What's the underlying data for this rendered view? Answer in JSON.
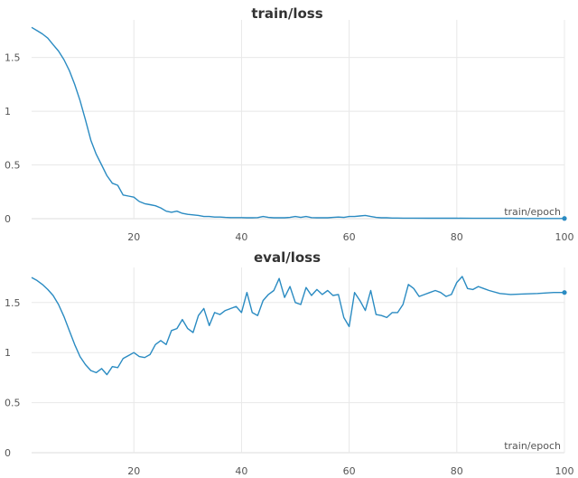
{
  "colors": {
    "series": "#2a8bc2"
  },
  "chart_data": [
    {
      "type": "line",
      "title": "train/loss",
      "xlabel": "train/epoch",
      "ylabel": "",
      "xlim": [
        1,
        100
      ],
      "ylim": [
        0,
        1.85
      ],
      "xticks": [
        20,
        40,
        60,
        80,
        100
      ],
      "xtick_labels": [
        "20",
        "40",
        "60",
        "80",
        "100"
      ],
      "yticks": [
        0,
        0.5,
        1,
        1.5
      ],
      "ytick_labels": [
        "0",
        "0.5",
        "1",
        "1.5"
      ],
      "grid": true,
      "series": [
        {
          "x": [
            1,
            2,
            3,
            4,
            5,
            6,
            7,
            8,
            9,
            10,
            11,
            12,
            13,
            14,
            15,
            16,
            17,
            18,
            19,
            20,
            21,
            22,
            23,
            24,
            25,
            26,
            27,
            28,
            29,
            30,
            31,
            32,
            33,
            34,
            35,
            36,
            37,
            38,
            39,
            40,
            41,
            42,
            43,
            44,
            45,
            46,
            47,
            48,
            49,
            50,
            51,
            52,
            53,
            54,
            55,
            56,
            57,
            58,
            59,
            60,
            61,
            62,
            63,
            64,
            65,
            66,
            67,
            68,
            69,
            70,
            72,
            75,
            78,
            80,
            83,
            85,
            88,
            90,
            93,
            95,
            97,
            100
          ],
          "y": [
            1.78,
            1.75,
            1.72,
            1.68,
            1.62,
            1.56,
            1.48,
            1.38,
            1.25,
            1.1,
            0.92,
            0.73,
            0.6,
            0.5,
            0.4,
            0.33,
            0.31,
            0.22,
            0.21,
            0.2,
            0.16,
            0.14,
            0.13,
            0.12,
            0.1,
            0.07,
            0.06,
            0.07,
            0.05,
            0.04,
            0.035,
            0.03,
            0.02,
            0.02,
            0.015,
            0.015,
            0.012,
            0.01,
            0.01,
            0.01,
            0.008,
            0.008,
            0.01,
            0.02,
            0.012,
            0.008,
            0.008,
            0.008,
            0.012,
            0.02,
            0.012,
            0.02,
            0.01,
            0.008,
            0.008,
            0.008,
            0.012,
            0.015,
            0.012,
            0.02,
            0.02,
            0.025,
            0.03,
            0.02,
            0.012,
            0.008,
            0.008,
            0.006,
            0.006,
            0.005,
            0.005,
            0.004,
            0.004,
            0.004,
            0.003,
            0.003,
            0.003,
            0.003,
            0.002,
            0.002,
            0.002,
            0.002
          ]
        }
      ]
    },
    {
      "type": "line",
      "title": "eval/loss",
      "xlabel": "train/epoch",
      "ylabel": "",
      "xlim": [
        1,
        100
      ],
      "ylim": [
        0,
        1.85
      ],
      "xticks": [
        20,
        40,
        60,
        80,
        100
      ],
      "xtick_labels": [
        "20",
        "40",
        "60",
        "80",
        "100"
      ],
      "yticks": [
        0,
        0.5,
        1,
        1.5
      ],
      "ytick_labels": [
        "0",
        "0.5",
        "1",
        "1.5"
      ],
      "grid": true,
      "series": [
        {
          "x": [
            1,
            2,
            3,
            4,
            5,
            6,
            7,
            8,
            9,
            10,
            11,
            12,
            13,
            14,
            15,
            16,
            17,
            18,
            19,
            20,
            21,
            22,
            23,
            24,
            25,
            26,
            27,
            28,
            29,
            30,
            31,
            32,
            33,
            34,
            35,
            36,
            37,
            38,
            39,
            40,
            41,
            42,
            43,
            44,
            45,
            46,
            47,
            48,
            49,
            50,
            51,
            52,
            53,
            54,
            55,
            56,
            57,
            58,
            59,
            60,
            61,
            62,
            63,
            64,
            65,
            66,
            67,
            68,
            69,
            70,
            71,
            72,
            73,
            74,
            75,
            76,
            77,
            78,
            79,
            80,
            81,
            82,
            83,
            84,
            85,
            86,
            88,
            90,
            92,
            95,
            98,
            100
          ],
          "y": [
            1.75,
            1.72,
            1.68,
            1.63,
            1.57,
            1.48,
            1.36,
            1.22,
            1.08,
            0.96,
            0.88,
            0.82,
            0.8,
            0.84,
            0.78,
            0.86,
            0.85,
            0.94,
            0.97,
            1.0,
            0.96,
            0.95,
            0.98,
            1.08,
            1.12,
            1.08,
            1.22,
            1.24,
            1.33,
            1.24,
            1.2,
            1.37,
            1.44,
            1.27,
            1.4,
            1.38,
            1.42,
            1.44,
            1.46,
            1.4,
            1.6,
            1.4,
            1.37,
            1.52,
            1.58,
            1.62,
            1.74,
            1.55,
            1.66,
            1.5,
            1.48,
            1.65,
            1.57,
            1.63,
            1.58,
            1.62,
            1.57,
            1.58,
            1.35,
            1.26,
            1.6,
            1.52,
            1.42,
            1.62,
            1.38,
            1.37,
            1.35,
            1.4,
            1.4,
            1.48,
            1.68,
            1.64,
            1.56,
            1.58,
            1.6,
            1.62,
            1.6,
            1.56,
            1.58,
            1.7,
            1.76,
            1.64,
            1.63,
            1.66,
            1.64,
            1.62,
            1.59,
            1.58,
            1.585,
            1.59,
            1.6,
            1.6
          ]
        }
      ]
    }
  ]
}
